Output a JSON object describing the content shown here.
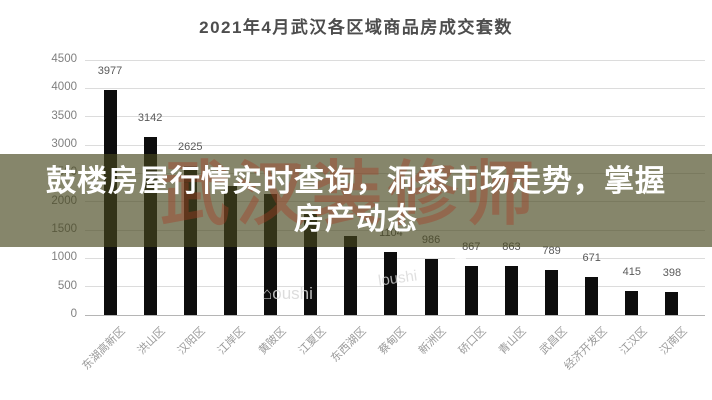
{
  "title": "2021年4月武汉各区域商品房成交套数",
  "banner": {
    "line1": "鼓楼房屋行情实时查询，洞悉市场走势，掌握",
    "line2": "房产动态",
    "red_watermark": "武汉装修师"
  },
  "watermarks": {
    "bottom_left": "⌂oushi",
    "bottom_mid": "loushi",
    "on_bar_vertical": "市m"
  },
  "colors": {
    "bar": "#0d0d0d",
    "banner_overlay": "rgba(72,72,30,0.66)",
    "banner_text": "#ffffff",
    "banner_red_watermark": "rgba(165,60,35,0.40)",
    "grid": "#dcdcdc",
    "zero_axis": "#b5b5b5",
    "tick_text": "#7f7f7f",
    "value_text": "#595959",
    "title_text": "#4d4d4d",
    "background": "#ffffff"
  },
  "chart_data": {
    "type": "bar",
    "title": "2021年4月武汉各区域商品房成交套数",
    "categories": [
      "东湖高新区",
      "洪山区",
      "汉阳区",
      "江岸区",
      "黄陂区",
      "江夏区",
      "东西湖区",
      "蔡甸区",
      "新洲区",
      "硚口区",
      "青山区",
      "武昌区",
      "经济开发区",
      "江汉区",
      "汉南区"
    ],
    "values": [
      3977,
      3142,
      2625,
      2280,
      2130,
      1800,
      1400,
      1104,
      986,
      867,
      863,
      789,
      671,
      415,
      398
    ],
    "value_labels": [
      "3977",
      "3142",
      "2625",
      "",
      "",
      "",
      "",
      "1104",
      "986",
      "867",
      "863",
      "789",
      "671",
      "415",
      "398"
    ],
    "estimated_indices_hidden_by_banner": [
      3,
      4,
      5,
      6
    ],
    "xlabel": "",
    "ylabel": "",
    "ylim": [
      0,
      4500
    ],
    "yticks": [
      0,
      500,
      1000,
      1500,
      2000,
      2500,
      3000,
      3500,
      4000,
      4500
    ],
    "grid": true,
    "legend": false,
    "bar_color": "#0d0d0d"
  }
}
